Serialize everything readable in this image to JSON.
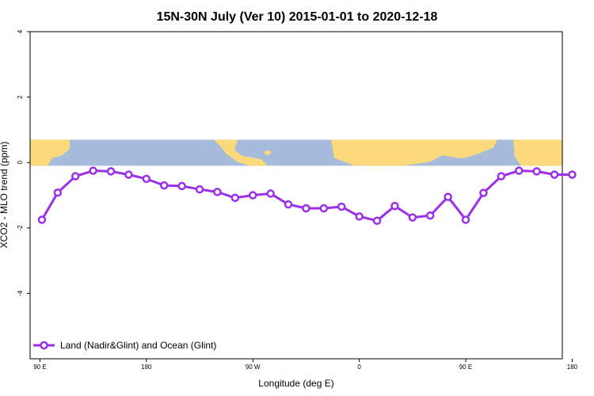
{
  "chart_data": {
    "type": "line",
    "title": "15N-30N July (Ver 10)   2015-01-01 to 2020-12-18",
    "xlabel": "Longitude (deg E)",
    "ylabel": "XCO2 - MLO trend (ppm)",
    "xlim": [
      85,
      355
    ],
    "ylim": [
      -6,
      4
    ],
    "x_ticks": [
      {
        "value": 90,
        "label": "90 E"
      },
      {
        "value": 144,
        "label": "180"
      },
      {
        "value": 198,
        "label": "90 W"
      },
      {
        "value": 252,
        "label": "0"
      },
      {
        "value": 306,
        "label": "90 E"
      },
      {
        "value": 360,
        "label": "180"
      }
    ],
    "y_ticks": [
      4,
      2,
      0,
      -2,
      -4
    ],
    "grid": false,
    "legend_position": "bottom-left",
    "map_band": {
      "ymin": -0.1,
      "ymax": 0.7,
      "ocean_color": "#a7bcda",
      "land_color": "#fcd97b"
    },
    "series": [
      {
        "name": "Land (Nadir&Glint) and Ocean (Glint)",
        "color": "#9b30e8",
        "x": [
          91,
          99,
          108,
          117,
          126,
          135,
          144,
          153,
          162,
          171,
          180,
          189,
          198,
          207,
          216,
          225,
          234,
          243,
          252,
          261,
          270,
          279,
          288,
          297,
          306,
          315,
          324,
          333,
          342,
          351,
          360
        ],
        "y": [
          -1.75,
          -0.92,
          -0.42,
          -0.25,
          -0.27,
          -0.37,
          -0.5,
          -0.7,
          -0.72,
          -0.82,
          -0.9,
          -1.08,
          -1.0,
          -0.95,
          -1.28,
          -1.4,
          -1.4,
          -1.35,
          -1.65,
          -1.78,
          -1.33,
          -1.68,
          -1.62,
          -1.05,
          -1.75,
          -0.93,
          -0.42,
          -0.25,
          -0.27,
          -0.37,
          -0.37
        ]
      }
    ]
  }
}
